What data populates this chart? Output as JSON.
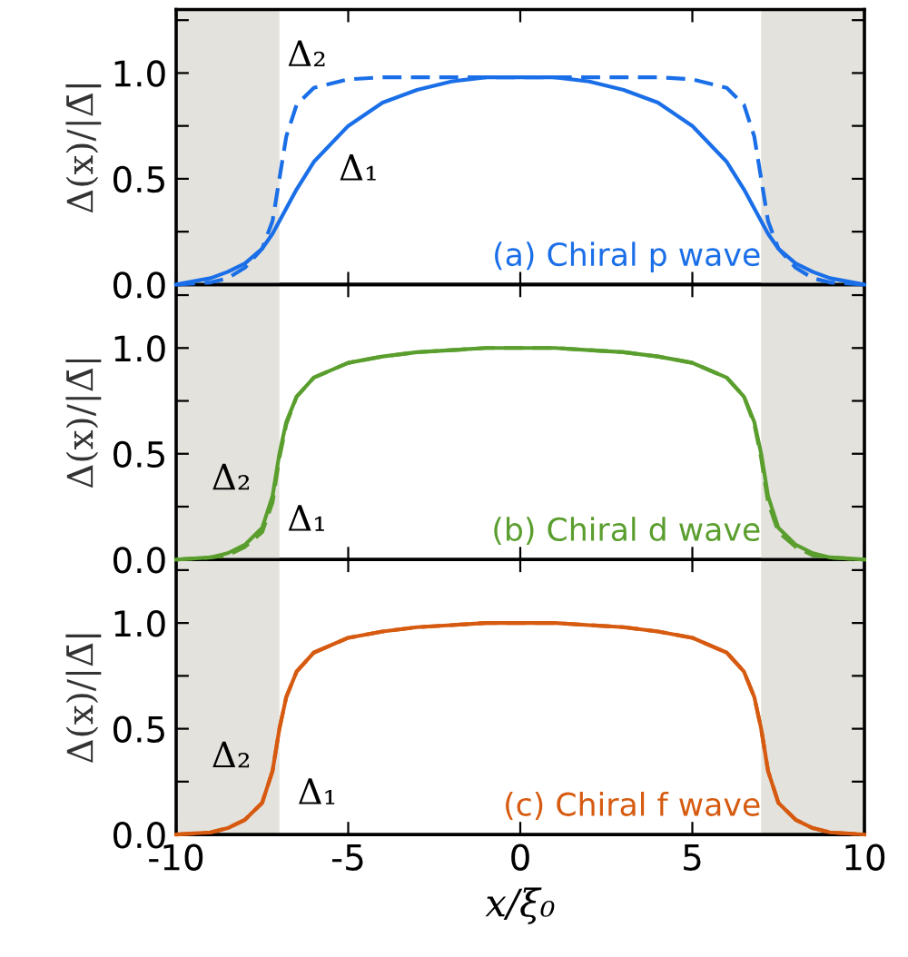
{
  "chart_data": [
    {
      "type": "line",
      "ylabel": "Δ(x)/|Δ̄|",
      "xlim": [
        -10,
        10
      ],
      "ylim": [
        0,
        1.3
      ],
      "xticks": [
        -10,
        -5,
        0,
        5,
        10
      ],
      "yticks": [
        {
          "value": 0,
          "label": "0.0"
        },
        {
          "value": 0.25,
          "label": null
        },
        {
          "value": 0.5,
          "label": "0.5"
        },
        {
          "value": 0.75,
          "label": null
        },
        {
          "value": 1,
          "label": "1.0"
        },
        {
          "value": 1.25,
          "label": null
        }
      ],
      "tick_labels": "y",
      "grid": false,
      "legend": false,
      "x": [
        -10,
        -9,
        -8.5,
        -8,
        -7.5,
        -7.2,
        -7,
        -6.8,
        -6.5,
        -6,
        -5,
        -4,
        -3,
        -2,
        -1,
        0,
        1,
        2,
        3,
        4,
        5,
        6,
        6.5,
        6.8,
        7,
        7.2,
        7.5,
        8,
        8.5,
        9,
        10
      ],
      "series": [
        {
          "color": "#1a6fe8",
          "line_style": "solid",
          "values": [
            0,
            0.03,
            0.06,
            0.1,
            0.17,
            0.24,
            0.3,
            0.36,
            0.45,
            0.58,
            0.75,
            0.86,
            0.92,
            0.96,
            0.98,
            0.98,
            0.98,
            0.96,
            0.92,
            0.86,
            0.75,
            0.58,
            0.45,
            0.36,
            0.3,
            0.24,
            0.17,
            0.1,
            0.06,
            0.03,
            0
          ]
        },
        {
          "color": "#1a6fe8",
          "line_style": "dashed",
          "values": [
            0,
            0.01,
            0.03,
            0.08,
            0.17,
            0.3,
            0.5,
            0.7,
            0.85,
            0.93,
            0.97,
            0.98,
            0.98,
            0.98,
            0.98,
            0.98,
            0.98,
            0.98,
            0.98,
            0.98,
            0.97,
            0.93,
            0.85,
            0.7,
            0.5,
            0.3,
            0.17,
            0.08,
            0.03,
            0.01,
            0
          ]
        }
      ],
      "bands": [
        {
          "axis": "x",
          "from": -10,
          "to": -7,
          "color": "#e3e2dc"
        },
        {
          "axis": "x",
          "from": 7,
          "to": 10,
          "color": "#e3e2dc"
        }
      ],
      "annotations": [
        "Δ₂",
        "Δ₁",
        "(a) Chiral p wave"
      ]
    },
    {
      "type": "line",
      "ylabel": "Δ(x)/|Δ̄|",
      "xlim": [
        -10,
        10
      ],
      "ylim": [
        0,
        1.3
      ],
      "xticks": [
        -10,
        -5,
        0,
        5,
        10
      ],
      "yticks": [
        {
          "value": 0,
          "label": "0.0"
        },
        {
          "value": 0.25,
          "label": null
        },
        {
          "value": 0.5,
          "label": "0.5"
        },
        {
          "value": 0.75,
          "label": null
        },
        {
          "value": 1,
          "label": "1.0"
        },
        {
          "value": 1.25,
          "label": null
        }
      ],
      "tick_labels": "y",
      "grid": false,
      "legend": false,
      "x": [
        -10,
        -9,
        -8.5,
        -8,
        -7.5,
        -7.2,
        -7,
        -6.8,
        -6.5,
        -6,
        -5,
        -4,
        -3,
        -2,
        -1,
        0,
        1,
        2,
        3,
        4,
        5,
        6,
        6.5,
        6.8,
        7,
        7.2,
        7.5,
        8,
        8.5,
        9,
        10
      ],
      "series": [
        {
          "color": "#5a9e2e",
          "line_style": "solid",
          "values": [
            0,
            0.01,
            0.03,
            0.07,
            0.15,
            0.3,
            0.5,
            0.65,
            0.77,
            0.86,
            0.93,
            0.96,
            0.98,
            0.99,
            1.0,
            1.0,
            1.0,
            0.99,
            0.98,
            0.96,
            0.93,
            0.86,
            0.77,
            0.65,
            0.5,
            0.3,
            0.15,
            0.07,
            0.03,
            0.01,
            0
          ]
        },
        {
          "color": "#5a9e2e",
          "line_style": "dashed",
          "values": [
            0,
            0.01,
            0.02,
            0.06,
            0.13,
            0.27,
            0.48,
            0.64,
            0.77,
            0.86,
            0.93,
            0.96,
            0.98,
            0.99,
            1.0,
            1.0,
            1.0,
            0.99,
            0.98,
            0.96,
            0.93,
            0.86,
            0.77,
            0.64,
            0.48,
            0.27,
            0.13,
            0.06,
            0.02,
            0.01,
            0
          ]
        }
      ],
      "bands": [
        {
          "axis": "x",
          "from": -10,
          "to": -7,
          "color": "#e3e2dc"
        },
        {
          "axis": "x",
          "from": 7,
          "to": 10,
          "color": "#e3e2dc"
        }
      ],
      "annotations": [
        "Δ₂",
        "Δ₁",
        "(b) Chiral d wave"
      ]
    },
    {
      "type": "line",
      "ylabel": "Δ(x)/|Δ̄|",
      "xlabel": "x/ξ₀",
      "xlim": [
        -10,
        10
      ],
      "ylim": [
        0,
        1.3
      ],
      "xticks": [
        -10,
        -5,
        0,
        5,
        10
      ],
      "yticks": [
        {
          "value": 0,
          "label": "0.0"
        },
        {
          "value": 0.25,
          "label": null
        },
        {
          "value": 0.5,
          "label": "0.5"
        },
        {
          "value": 0.75,
          "label": null
        },
        {
          "value": 1,
          "label": "1.0"
        },
        {
          "value": 1.25,
          "label": null
        }
      ],
      "grid": false,
      "legend": false,
      "x": [
        -10,
        -9,
        -8.5,
        -8,
        -7.5,
        -7.2,
        -7,
        -6.8,
        -6.5,
        -6,
        -5,
        -4,
        -3,
        -2,
        -1,
        0,
        1,
        2,
        3,
        4,
        5,
        6,
        6.5,
        6.8,
        7,
        7.2,
        7.5,
        8,
        8.5,
        9,
        10
      ],
      "series": [
        {
          "color": "#d65a10",
          "line_style": "solid",
          "values": [
            0,
            0.01,
            0.03,
            0.07,
            0.15,
            0.3,
            0.5,
            0.65,
            0.77,
            0.86,
            0.93,
            0.96,
            0.98,
            0.99,
            1.0,
            1.0,
            1.0,
            0.99,
            0.98,
            0.96,
            0.93,
            0.86,
            0.77,
            0.65,
            0.5,
            0.3,
            0.15,
            0.07,
            0.03,
            0.01,
            0
          ]
        },
        {
          "color": "#d65a10",
          "line_style": "dashed",
          "values": [
            0,
            0.01,
            0.03,
            0.07,
            0.15,
            0.3,
            0.5,
            0.65,
            0.77,
            0.86,
            0.93,
            0.96,
            0.98,
            0.99,
            1.0,
            1.0,
            1.0,
            0.99,
            0.98,
            0.96,
            0.93,
            0.86,
            0.77,
            0.65,
            0.5,
            0.3,
            0.15,
            0.07,
            0.03,
            0.01,
            0
          ]
        }
      ],
      "bands": [
        {
          "axis": "x",
          "from": -10,
          "to": -7,
          "color": "#e3e2dc"
        },
        {
          "axis": "x",
          "from": 7,
          "to": 10,
          "color": "#e3e2dc"
        }
      ],
      "annotations": [
        "Δ₂",
        "Δ₁",
        "(c) Chiral f wave"
      ]
    }
  ]
}
